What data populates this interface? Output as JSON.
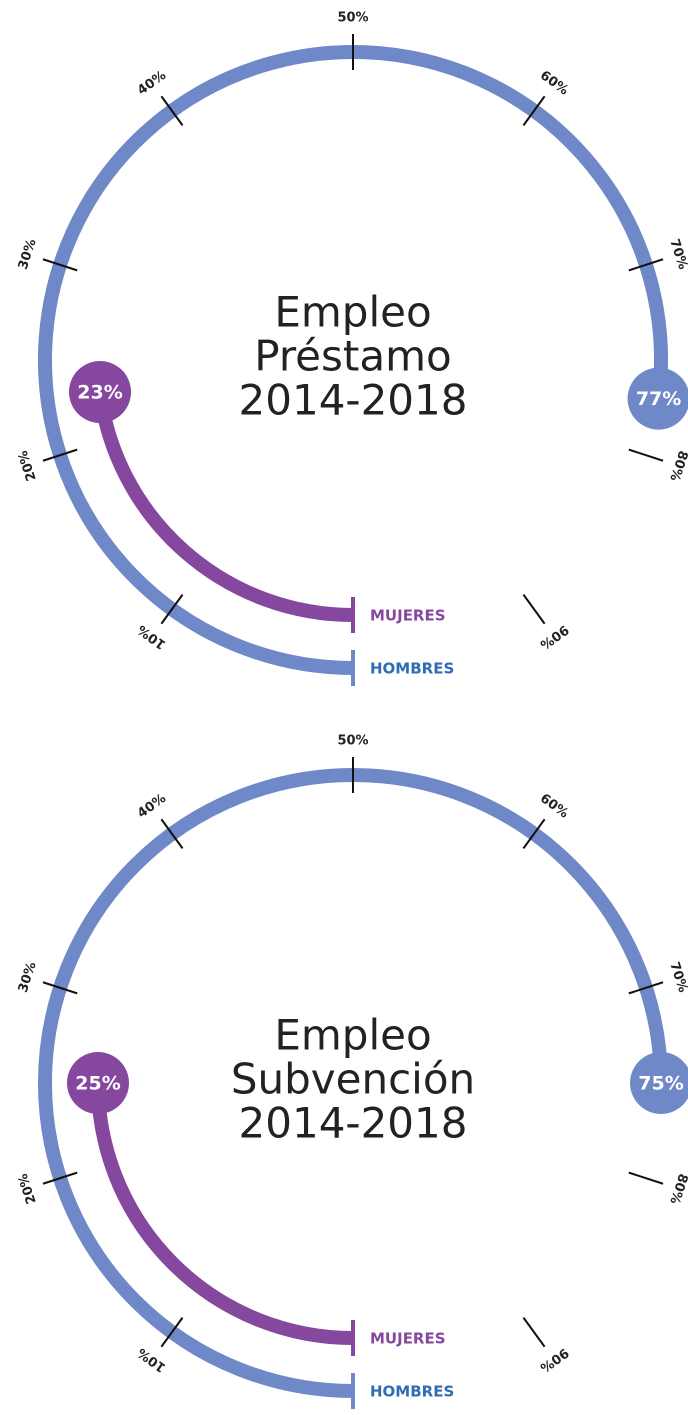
{
  "chart_data": [
    {
      "type": "radial_bar",
      "title": [
        "Empleo",
        "Préstamo",
        "2014-2018"
      ],
      "ylim": [
        0,
        100
      ],
      "yticks": [
        {
          "value": 10,
          "label": "10%"
        },
        {
          "value": 20,
          "label": "20%"
        },
        {
          "value": 30,
          "label": "30%"
        },
        {
          "value": 40,
          "label": "40%"
        },
        {
          "value": 50,
          "label": "50%"
        },
        {
          "value": 60,
          "label": "60%"
        },
        {
          "value": 70,
          "label": "70%"
        },
        {
          "value": 80,
          "label": "80%"
        },
        {
          "value": 90,
          "label": "90%"
        }
      ],
      "series": [
        {
          "name": "MUJERES",
          "color": "#86479e",
          "label_color": "#86479e",
          "values": [
            23
          ],
          "value_labels": [
            "23%"
          ]
        },
        {
          "name": "HOMBRES",
          "color": "#6f88c8",
          "label_color": "#2e6cb4",
          "values": [
            77
          ],
          "value_labels": [
            "77%"
          ]
        }
      ]
    },
    {
      "type": "radial_bar",
      "title": [
        "Empleo",
        "Subvención",
        "2014-2018"
      ],
      "ylim": [
        0,
        100
      ],
      "yticks": [
        {
          "value": 10,
          "label": "10%"
        },
        {
          "value": 20,
          "label": "20%"
        },
        {
          "value": 30,
          "label": "30%"
        },
        {
          "value": 40,
          "label": "40%"
        },
        {
          "value": 50,
          "label": "50%"
        },
        {
          "value": 60,
          "label": "60%"
        },
        {
          "value": 70,
          "label": "70%"
        },
        {
          "value": 80,
          "label": "80%"
        },
        {
          "value": 90,
          "label": "90%"
        }
      ],
      "series": [
        {
          "name": "MUJERES",
          "color": "#86479e",
          "label_color": "#86479e",
          "values": [
            25
          ],
          "value_labels": [
            "25%"
          ]
        },
        {
          "name": "HOMBRES",
          "color": "#6f88c8",
          "label_color": "#2e6cb4",
          "values": [
            75
          ],
          "value_labels": [
            "75%"
          ]
        }
      ]
    }
  ]
}
